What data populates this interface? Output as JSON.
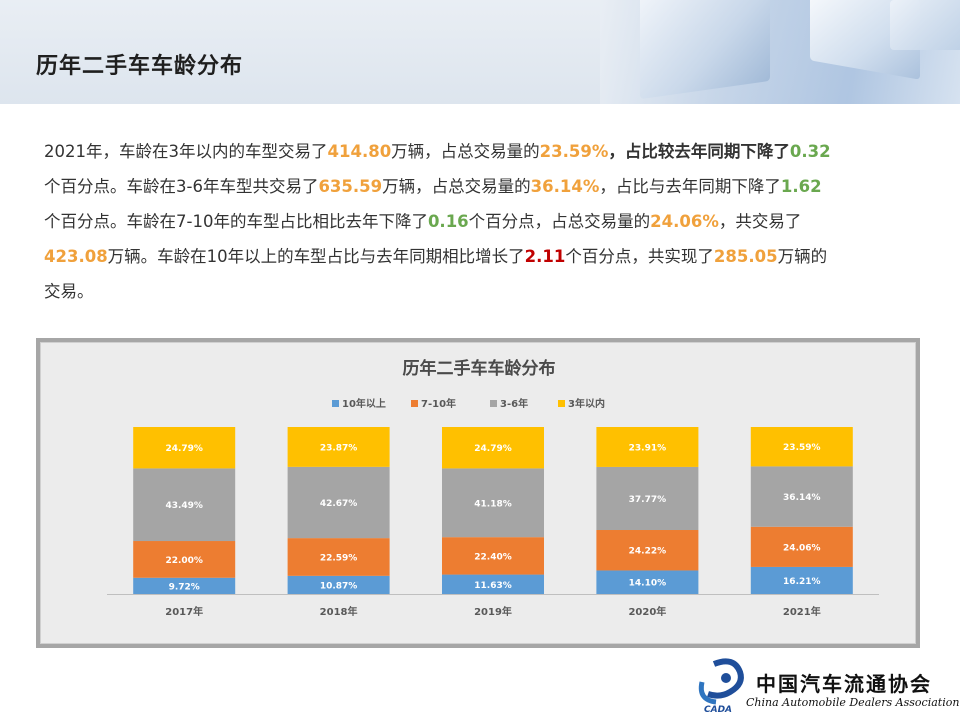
{
  "page": {
    "title": "历年二手车车龄分布"
  },
  "summary": {
    "lines": [
      [
        {
          "t": "2021年，车龄在3年以内的车型交易了",
          "c": ""
        },
        {
          "t": "414.80",
          "c": "orange"
        },
        {
          "t": "万辆，占总交易量的",
          "c": ""
        },
        {
          "t": "23.59%",
          "c": "orange"
        },
        {
          "t": "，占比较去年同期下降了",
          "c": "bold"
        },
        {
          "t": "0.32",
          "c": "green"
        }
      ],
      [
        {
          "t": "个百分点。车龄在3-6年车型共交易了",
          "c": ""
        },
        {
          "t": "635.59",
          "c": "orange"
        },
        {
          "t": "万辆，占总交易量的",
          "c": ""
        },
        {
          "t": "36.14%",
          "c": "orange"
        },
        {
          "t": "，占比与去年同期下降了",
          "c": ""
        },
        {
          "t": "1.62",
          "c": "green"
        }
      ],
      [
        {
          "t": "个百分点。车龄在7-10年的车型占比相比去年下降了",
          "c": ""
        },
        {
          "t": "0.16",
          "c": "green"
        },
        {
          "t": "个百分点，占总交易量的",
          "c": ""
        },
        {
          "t": "24.06%",
          "c": "orange"
        },
        {
          "t": "，共交易了",
          "c": ""
        }
      ],
      [
        {
          "t": "423.08",
          "c": "orange"
        },
        {
          "t": "万辆。车龄在10年以上的车型占比与去年同期相比增长了",
          "c": ""
        },
        {
          "t": "2.11",
          "c": "red"
        },
        {
          "t": "个百分点，共实现了",
          "c": ""
        },
        {
          "t": "285.05",
          "c": "orange"
        },
        {
          "t": "万辆的",
          "c": ""
        }
      ],
      [
        {
          "t": "交易。",
          "c": ""
        }
      ]
    ]
  },
  "chart_data": {
    "type": "bar",
    "stacked": true,
    "title": "历年二手车车龄分布",
    "categories": [
      "2017年",
      "2018年",
      "2019年",
      "2020年",
      "2021年"
    ],
    "series": [
      {
        "name": "10年以上",
        "color": "#5b9bd5",
        "values": [
          9.72,
          10.87,
          11.63,
          14.1,
          16.21
        ],
        "labels": [
          "9.72%",
          "10.87%",
          "11.63%",
          "14.10%",
          "16.21%"
        ]
      },
      {
        "name": "7-10年",
        "color": "#ed7d31",
        "values": [
          22.0,
          22.59,
          22.4,
          24.22,
          24.06
        ],
        "labels": [
          "22.00%",
          "22.59%",
          "22.40%",
          "24.22%",
          "24.06%"
        ]
      },
      {
        "name": "3-6年",
        "color": "#a5a5a5",
        "values": [
          43.49,
          42.67,
          41.18,
          37.77,
          36.14
        ],
        "labels": [
          "43.49%",
          "42.67%",
          "41.18%",
          "37.77%",
          "36.14%"
        ]
      },
      {
        "name": "3年以内",
        "color": "#ffc000",
        "values": [
          24.79,
          23.87,
          24.79,
          23.91,
          23.59
        ],
        "labels": [
          "24.79%",
          "23.87%",
          "24.79%",
          "23.91%",
          "23.59%"
        ]
      }
    ],
    "ylim": [
      0,
      100
    ],
    "grid": false,
    "legend": "top-center"
  },
  "logo": {
    "cn": "中国汽车流通协会",
    "en": "China Automobile Dealers Association",
    "mark": "CADA"
  }
}
